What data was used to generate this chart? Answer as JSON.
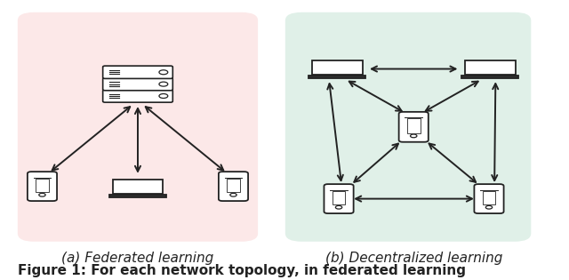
{
  "fig_width": 6.4,
  "fig_height": 3.15,
  "bg_color": "#ffffff",
  "left_bg": "#fce8e8",
  "right_bg": "#e0f0e8",
  "left_title": "(a) Federated learning",
  "right_title": "(b) Decentralized learning",
  "bottom_caption": "Figure 1: For each network topology, in federated learning",
  "title_fontsize": 11,
  "caption_fontsize": 11,
  "arrow_color": "#222222",
  "ec": "#222222",
  "fc_white": "#ffffff",
  "fc_screen": "#dddddd",
  "fc_base": "#333333"
}
